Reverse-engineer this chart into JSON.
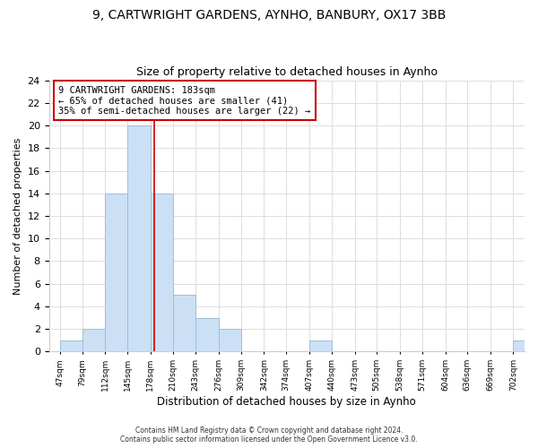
{
  "title_line1": "9, CARTWRIGHT GARDENS, AYNHO, BANBURY, OX17 3BB",
  "title_line2": "Size of property relative to detached houses in Aynho",
  "xlabel": "Distribution of detached houses by size in Aynho",
  "ylabel": "Number of detached properties",
  "bar_edges": [
    47,
    79,
    112,
    145,
    178,
    210,
    243,
    276,
    309,
    342,
    374,
    407,
    440,
    473,
    505,
    538,
    571,
    604,
    636,
    669,
    702
  ],
  "bar_heights": [
    1,
    2,
    14,
    20,
    14,
    5,
    3,
    2,
    0,
    0,
    0,
    1,
    0,
    0,
    0,
    0,
    0,
    0,
    0,
    0,
    1
  ],
  "bar_color": "#cce0f5",
  "bar_edge_color": "#9bbfd8",
  "vline_x": 183,
  "vline_color": "#cc0000",
  "annotation_text": "9 CARTWRIGHT GARDENS: 183sqm\n← 65% of detached houses are smaller (41)\n35% of semi-detached houses are larger (22) →",
  "annotation_box_color": "white",
  "annotation_box_edge_color": "#cc0000",
  "ylim": [
    0,
    24
  ],
  "yticks": [
    0,
    2,
    4,
    6,
    8,
    10,
    12,
    14,
    16,
    18,
    20,
    22,
    24
  ],
  "tick_labels": [
    "47sqm",
    "79sqm",
    "112sqm",
    "145sqm",
    "178sqm",
    "210sqm",
    "243sqm",
    "276sqm",
    "309sqm",
    "342sqm",
    "374sqm",
    "407sqm",
    "440sqm",
    "473sqm",
    "505sqm",
    "538sqm",
    "571sqm",
    "604sqm",
    "636sqm",
    "669sqm",
    "702sqm"
  ],
  "footer_line1": "Contains HM Land Registry data © Crown copyright and database right 2024.",
  "footer_line2": "Contains public sector information licensed under the Open Government Licence v3.0.",
  "grid_color": "#dddddd",
  "background_color": "#ffffff",
  "title_fontsize": 10,
  "subtitle_fontsize": 9
}
